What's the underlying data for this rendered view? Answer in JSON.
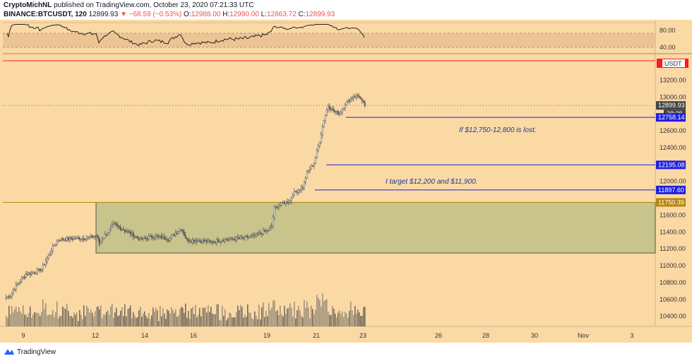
{
  "header": {
    "publisher": "CryptoMichNL",
    "published_text": "published on TradingView.com, October 23, 2020 07:21:33 UTC",
    "symbol": "BINANCE:BTCUSDT, 120",
    "last": "12899.93",
    "change": "▼ −68.59 (−0.53%)",
    "o_label": "O:",
    "o_value": "12988.00",
    "h_label": "H:",
    "h_value": "12990.00",
    "l_label": "L:",
    "l_value": "12863.72",
    "c_label": "C:",
    "c_value": "12899.93"
  },
  "footer": {
    "brand": "TradingView"
  },
  "colors": {
    "background": "#fbd9a5",
    "resistance": "#ff1a1a",
    "level": "#1f1fe0",
    "zone_fill": "#c9c48c",
    "zone_border": "#b8860b",
    "candle": "#555555",
    "volume": "#8a8070"
  },
  "chart_data": {
    "type": "candlestick",
    "price_axis": {
      "ylim": [
        10280,
        13480
      ],
      "ticks": [
        "10400.00",
        "10600.00",
        "10800.00",
        "11000.00",
        "11200.00",
        "11400.00",
        "11600.00",
        "12000.00",
        "12200.00",
        "12400.00",
        "12600.00",
        "13000.00",
        "13200.00"
      ],
      "quote_unit": "USDT"
    },
    "x_axis": {
      "labels": [
        "9",
        "12",
        "14",
        "16",
        "19",
        "21",
        "23",
        "26",
        "28",
        "30",
        "Nov",
        "3"
      ]
    },
    "rsi": {
      "ticks": [
        "80.00",
        "40.00"
      ],
      "upper": 70,
      "lower": 30
    },
    "levels": [
      {
        "name": "current-price",
        "price": 12899.93,
        "label": "12899.93",
        "timer": "38:28"
      },
      {
        "name": "support-1",
        "price": 12758.14,
        "label": "12758.14"
      },
      {
        "name": "support-2",
        "price": 12195.08,
        "label": "12195.08"
      },
      {
        "name": "support-3",
        "price": 11897.6,
        "label": "11897.60"
      },
      {
        "name": "range-top",
        "price": 11750.39,
        "label": "11750.39"
      }
    ],
    "resistance_price": 13430,
    "range_zone": {
      "top": 11750.39,
      "bottom": 11150
    },
    "annotations": [
      {
        "name": "annotation-lost",
        "text": "If $12,750-12,800 is lost."
      },
      {
        "name": "annotation-target",
        "text": "I target $12,200 and $11,900."
      }
    ],
    "waypoints": [
      [
        0,
        10620
      ],
      [
        3,
        10650
      ],
      [
        7,
        10760
      ],
      [
        14,
        10900
      ],
      [
        20,
        10920
      ],
      [
        25,
        10960
      ],
      [
        31,
        11150
      ],
      [
        33,
        11220
      ],
      [
        37,
        11310
      ],
      [
        47,
        11320
      ],
      [
        58,
        11330
      ],
      [
        64,
        11360
      ],
      [
        66,
        11260
      ],
      [
        68,
        11320
      ],
      [
        73,
        11420
      ],
      [
        76,
        11490
      ],
      [
        86,
        11400
      ],
      [
        95,
        11310
      ],
      [
        105,
        11350
      ],
      [
        115,
        11320
      ],
      [
        124,
        11440
      ],
      [
        128,
        11300
      ],
      [
        135,
        11300
      ],
      [
        145,
        11280
      ],
      [
        155,
        11310
      ],
      [
        165,
        11320
      ],
      [
        175,
        11350
      ],
      [
        185,
        11420
      ],
      [
        188,
        11470
      ],
      [
        190,
        11680
      ],
      [
        196,
        11740
      ],
      [
        201,
        11770
      ],
      [
        203,
        11850
      ],
      [
        207,
        11900
      ],
      [
        210,
        11930
      ],
      [
        213,
        12100
      ],
      [
        218,
        12220
      ],
      [
        222,
        12480
      ],
      [
        225,
        12730
      ],
      [
        228,
        12900
      ],
      [
        232,
        12830
      ],
      [
        236,
        12800
      ],
      [
        240,
        12920
      ],
      [
        246,
        13010
      ],
      [
        250,
        13010
      ],
      [
        252,
        12940
      ],
      [
        254,
        12900
      ]
    ]
  }
}
